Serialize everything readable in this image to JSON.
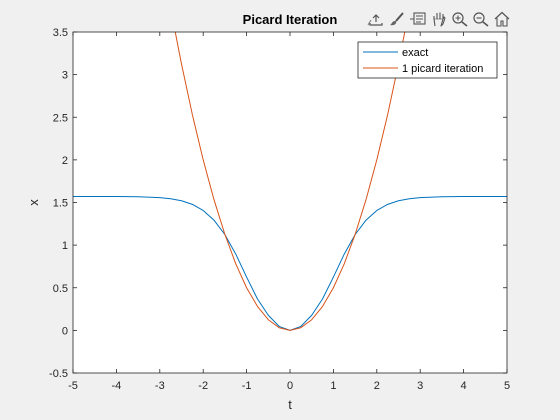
{
  "chart_data": {
    "type": "line",
    "title": "Picard Iteration",
    "xlabel": "t",
    "ylabel": "x",
    "xlim": [
      -5,
      5
    ],
    "ylim": [
      -0.5,
      3.5
    ],
    "xticks": [
      -5,
      -4,
      -3,
      -2,
      -1,
      0,
      1,
      2,
      3,
      4,
      5
    ],
    "yticks": [
      -0.5,
      0,
      0.5,
      1,
      1.5,
      2,
      2.5,
      3,
      3.5
    ],
    "xtick_labels": [
      "-5",
      "-4",
      "-3",
      "-2",
      "-1",
      "0",
      "1",
      "2",
      "3",
      "4",
      "5"
    ],
    "ytick_labels": [
      "-0.5",
      "0",
      "0.5",
      "1",
      "1.5",
      "2",
      "2.5",
      "3",
      "3.5"
    ],
    "grid": false,
    "legend_position": "top-right",
    "series": [
      {
        "name": "exact",
        "color": "#0072BD",
        "x": [
          -5,
          -4.5,
          -4,
          -3.5,
          -3,
          -2.75,
          -2.5,
          -2.25,
          -2,
          -1.75,
          -1.5,
          -1.25,
          -1,
          -0.75,
          -0.5,
          -0.25,
          0,
          0.25,
          0.5,
          0.75,
          1,
          1.25,
          1.5,
          1.75,
          2,
          2.25,
          2.5,
          2.75,
          3,
          3.5,
          4,
          4.5,
          5
        ],
        "y": [
          1.5707,
          1.5706,
          1.5702,
          1.5681,
          1.5573,
          1.5446,
          1.5208,
          1.4783,
          1.4065,
          1.2924,
          1.1231,
          0.8948,
          0.6255,
          0.3693,
          0.1776,
          0.0465,
          0.0,
          0.0465,
          0.1776,
          0.3693,
          0.6255,
          0.8948,
          1.1231,
          1.2924,
          1.4065,
          1.4783,
          1.5208,
          1.5446,
          1.5573,
          1.5681,
          1.5702,
          1.5706,
          1.5707
        ]
      },
      {
        "name": "1 picard iteration",
        "color": "#D95319",
        "x": [
          -2.7,
          -2.5,
          -2.25,
          -2,
          -1.75,
          -1.5,
          -1.25,
          -1,
          -0.75,
          -0.5,
          -0.25,
          0,
          0.25,
          0.5,
          0.75,
          1,
          1.25,
          1.5,
          1.75,
          2,
          2.25,
          2.5,
          2.7
        ],
        "y": [
          3.645,
          3.125,
          2.5313,
          2.0,
          1.5313,
          1.125,
          0.7813,
          0.5,
          0.2813,
          0.125,
          0.0313,
          0.0,
          0.0313,
          0.125,
          0.2813,
          0.5,
          0.7813,
          1.125,
          1.5313,
          2.0,
          2.5313,
          3.125,
          3.645
        ]
      }
    ]
  },
  "toolbar": {
    "icons": [
      "export-icon",
      "brush-icon",
      "datatip-icon",
      "pan-icon",
      "zoom-in-icon",
      "zoom-out-icon",
      "home-icon"
    ]
  }
}
